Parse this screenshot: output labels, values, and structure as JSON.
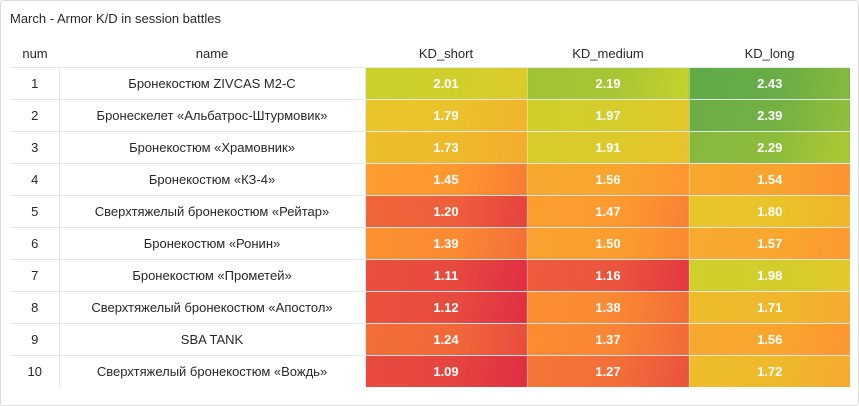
{
  "panel": {
    "title": "March - Armor K/D in session battles"
  },
  "table": {
    "columns": [
      "num",
      "name",
      "KD_short",
      "KD_medium",
      "KD_long"
    ],
    "rows": [
      {
        "num": "1",
        "name": "Бронекостюм ZIVCAS M2-C",
        "kd_short": "2.01",
        "kd_medium": "2.19",
        "kd_long": "2.43"
      },
      {
        "num": "2",
        "name": "Бронескелет «Альбатрос-Штурмовик»",
        "kd_short": "1.79",
        "kd_medium": "1.97",
        "kd_long": "2.39"
      },
      {
        "num": "3",
        "name": "Бронекостюм «Храмовник»",
        "kd_short": "1.73",
        "kd_medium": "1.91",
        "kd_long": "2.29"
      },
      {
        "num": "4",
        "name": "Бронекостюм «КЗ-4»",
        "kd_short": "1.45",
        "kd_medium": "1.56",
        "kd_long": "1.54"
      },
      {
        "num": "5",
        "name": "Сверхтяжелый бронекостюм «Рейтар»",
        "kd_short": "1.20",
        "kd_medium": "1.47",
        "kd_long": "1.80"
      },
      {
        "num": "6",
        "name": "Бронекостюм «Ронин»",
        "kd_short": "1.39",
        "kd_medium": "1.50",
        "kd_long": "1.57"
      },
      {
        "num": "7",
        "name": "Бронекостюм «Прометей»",
        "kd_short": "1.11",
        "kd_medium": "1.16",
        "kd_long": "1.98"
      },
      {
        "num": "8",
        "name": "Сверхтяжелый бронекостюм «Апостол»",
        "kd_short": "1.12",
        "kd_medium": "1.38",
        "kd_long": "1.71"
      },
      {
        "num": "9",
        "name": "SBA TANK",
        "kd_short": "1.24",
        "kd_medium": "1.37",
        "kd_long": "1.56"
      },
      {
        "num": "10",
        "name": "Сверхтяжелый бронекостюм «Вождь»",
        "kd_short": "1.09",
        "kd_medium": "1.27",
        "kd_long": "1.72"
      }
    ]
  },
  "colors": {
    "low": "#e02f44",
    "mid_low": "#ff9830",
    "mid": "#e8c62a",
    "mid_high": "#c5d22c",
    "high": "#56a64b",
    "scale_min": 1.0,
    "scale_max": 2.5
  }
}
